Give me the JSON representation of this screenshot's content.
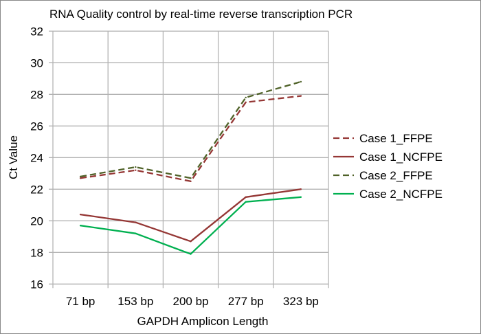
{
  "chart_data": {
    "type": "line",
    "title": "RNA Quality control by real-time reverse transcription PCR",
    "xlabel": "GAPDH Amplicon Length",
    "ylabel": "Ct Value",
    "categories": [
      "71 bp",
      "153 bp",
      "200 bp",
      "277 bp",
      "323 bp"
    ],
    "ylim": [
      16,
      32
    ],
    "yticks": [
      16,
      18,
      20,
      22,
      24,
      26,
      28,
      30,
      32
    ],
    "grid": true,
    "legend_position": "right",
    "series": [
      {
        "name": "Case 1_FFPE",
        "values": [
          22.7,
          23.2,
          22.5,
          27.5,
          27.9
        ],
        "color": "#953735",
        "dashed": true
      },
      {
        "name": "Case 1_NCFPE",
        "values": [
          20.4,
          19.9,
          18.7,
          21.5,
          22.0
        ],
        "color": "#953735",
        "dashed": false
      },
      {
        "name": "Case 2_FFPE",
        "values": [
          22.8,
          23.4,
          22.7,
          27.8,
          28.8
        ],
        "color": "#4f6228",
        "dashed": true
      },
      {
        "name": "Case 2_NCFPE",
        "values": [
          19.7,
          19.2,
          17.9,
          21.2,
          21.5
        ],
        "color": "#00b050",
        "dashed": false
      }
    ]
  }
}
